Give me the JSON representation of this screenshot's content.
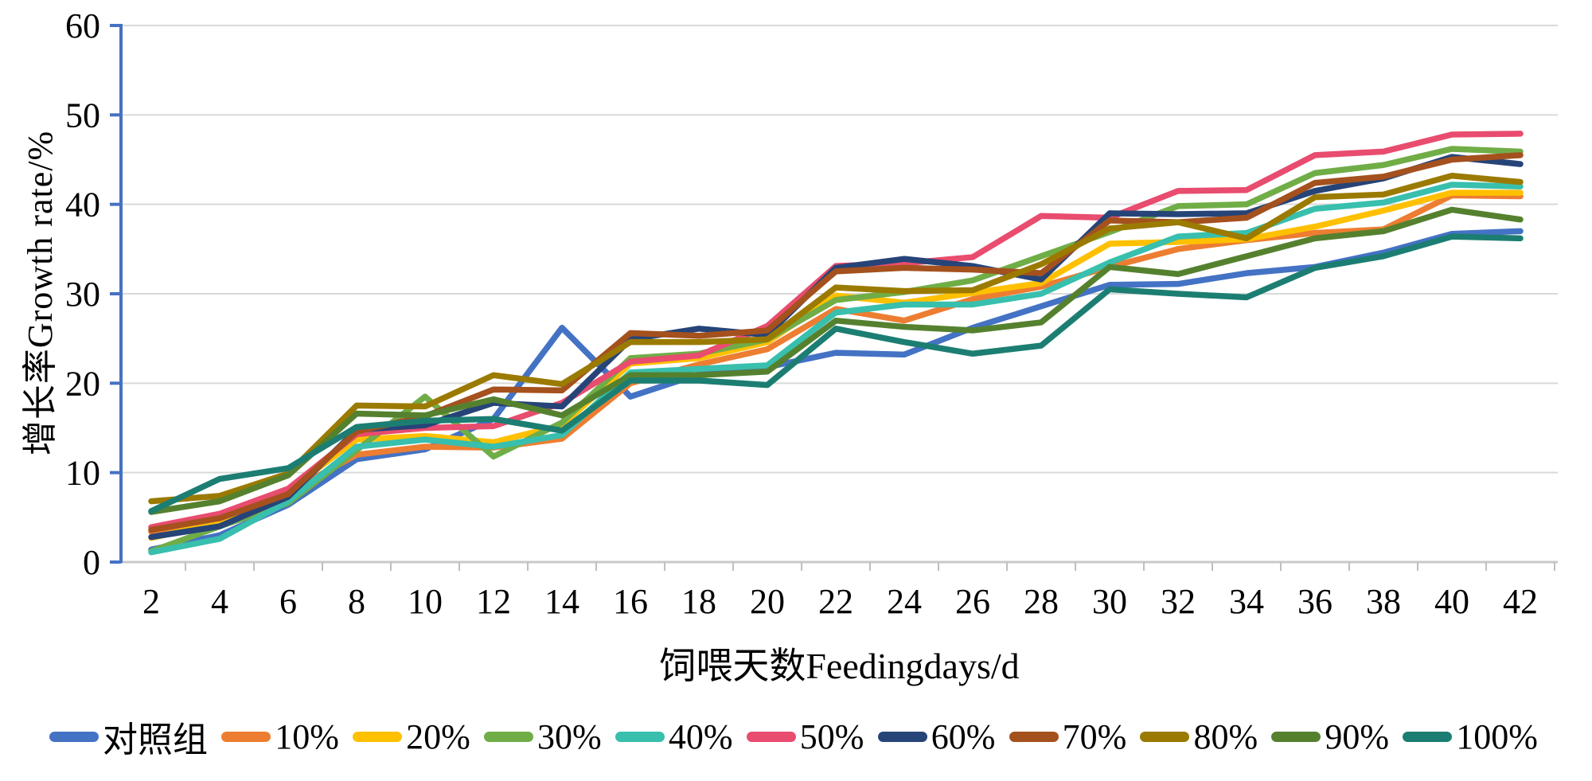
{
  "chart_data": {
    "type": "line",
    "xlabel": "饲喂天数Feedingdays/d",
    "ylabel": "增长率Growth rate/%",
    "x": [
      2,
      4,
      6,
      8,
      10,
      12,
      14,
      16,
      18,
      20,
      22,
      24,
      26,
      28,
      30,
      32,
      34,
      36,
      38,
      40,
      42
    ],
    "ylim": [
      0,
      60
    ],
    "ytick_step": 10,
    "grid": true,
    "legend_position": "bottom",
    "axis_colors": {
      "y_axis": "#4472C4",
      "x_axis": "#C9C9C9",
      "gridline": "#D9D9D9",
      "tick_label": "#000000"
    },
    "series": [
      {
        "name": "对照组",
        "color": "#4472C4",
        "values": [
          1.4,
          3.0,
          6.4,
          11.5,
          12.6,
          16.0,
          26.2,
          18.5,
          21.0,
          21.8,
          23.4,
          23.2,
          26.2,
          28.6,
          31.0,
          31.1,
          32.3,
          33.0,
          34.6,
          36.7,
          37.0
        ]
      },
      {
        "name": "10%",
        "color": "#ED7D31",
        "values": [
          3.4,
          5.0,
          7.8,
          12.0,
          12.9,
          12.8,
          13.8,
          20.0,
          22.1,
          23.8,
          28.3,
          27.0,
          29.4,
          30.8,
          33.0,
          35.0,
          36.0,
          36.8,
          37.2,
          41.0,
          40.9
        ]
      },
      {
        "name": "20%",
        "color": "#FFC000",
        "values": [
          2.7,
          4.4,
          8.0,
          13.7,
          14.1,
          13.4,
          15.3,
          22.2,
          22.8,
          24.6,
          29.8,
          29.0,
          30.1,
          31.2,
          35.6,
          35.8,
          36.1,
          37.5,
          39.3,
          41.3,
          41.3
        ]
      },
      {
        "name": "30%",
        "color": "#70AD47",
        "values": [
          1.2,
          4.0,
          6.6,
          12.5,
          18.5,
          11.8,
          15.6,
          22.8,
          23.3,
          24.9,
          29.3,
          30.2,
          31.5,
          34.2,
          36.9,
          39.8,
          40.0,
          43.5,
          44.4,
          46.2,
          45.9
        ]
      },
      {
        "name": "40%",
        "color": "#38BFAD",
        "values": [
          1.1,
          2.6,
          6.8,
          12.9,
          13.7,
          12.9,
          14.2,
          21.2,
          21.6,
          22.0,
          27.9,
          28.8,
          28.8,
          30.0,
          33.5,
          36.4,
          36.8,
          39.5,
          40.2,
          42.2,
          42.0
        ]
      },
      {
        "name": "50%",
        "color": "#E84C6E",
        "values": [
          3.9,
          5.4,
          8.2,
          14.3,
          15.0,
          15.2,
          17.8,
          22.4,
          23.1,
          26.4,
          33.1,
          33.4,
          34.1,
          38.7,
          38.5,
          41.5,
          41.6,
          45.5,
          45.9,
          47.8,
          47.9
        ]
      },
      {
        "name": "60%",
        "color": "#264478",
        "values": [
          2.8,
          4.0,
          7.3,
          14.8,
          15.3,
          17.8,
          17.4,
          24.9,
          26.1,
          25.4,
          32.9,
          33.9,
          33.1,
          31.6,
          39.0,
          38.9,
          39.0,
          41.5,
          42.9,
          45.3,
          44.5
        ]
      },
      {
        "name": "70%",
        "color": "#A4511E",
        "values": [
          3.6,
          4.9,
          7.6,
          14.6,
          16.3,
          19.3,
          19.2,
          25.6,
          25.3,
          25.9,
          32.5,
          32.9,
          32.7,
          32.3,
          38.2,
          38.0,
          38.5,
          42.4,
          43.1,
          45.0,
          45.5
        ]
      },
      {
        "name": "80%",
        "color": "#9B7A00",
        "values": [
          6.8,
          7.4,
          9.9,
          17.5,
          17.4,
          20.9,
          19.9,
          24.6,
          24.6,
          24.9,
          30.7,
          30.3,
          30.4,
          33.3,
          37.3,
          38.0,
          36.2,
          40.8,
          41.1,
          43.2,
          42.5
        ]
      },
      {
        "name": "90%",
        "color": "#55812F",
        "values": [
          5.6,
          6.8,
          9.7,
          16.6,
          16.4,
          18.2,
          16.4,
          20.9,
          20.9,
          21.3,
          27.0,
          26.3,
          25.9,
          26.8,
          33.0,
          32.2,
          34.2,
          36.2,
          37.0,
          39.4,
          38.3
        ]
      },
      {
        "name": "100%",
        "color": "#1C7E72",
        "values": [
          5.7,
          9.3,
          10.5,
          15.1,
          15.8,
          16.0,
          14.7,
          20.3,
          20.3,
          19.8,
          26.1,
          24.6,
          23.3,
          24.2,
          30.5,
          30.0,
          29.6,
          32.9,
          34.2,
          36.4,
          36.2
        ]
      }
    ]
  }
}
